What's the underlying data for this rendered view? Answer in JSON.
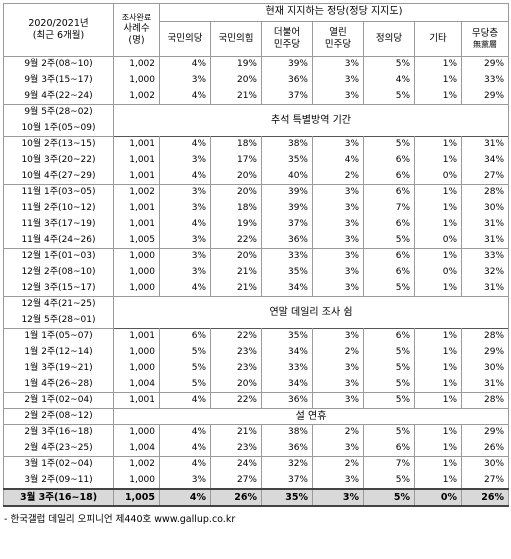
{
  "header": {
    "col_period_line1": "2020/2021년",
    "col_period_line2": "(최근 6개월)",
    "col_sample_top": "조사완료",
    "col_sample_line1": "사례수",
    "col_sample_line2": "(명)",
    "group_title": "현재 지지하는 정당(정당 지지도)",
    "parties": [
      {
        "line1": "국민의당",
        "line2": ""
      },
      {
        "line1": "국민의힘",
        "line2": ""
      },
      {
        "line1": "더불어",
        "line2": "민주당"
      },
      {
        "line1": "열린",
        "line2": "민주당"
      },
      {
        "line1": "정의당",
        "line2": ""
      },
      {
        "line1": "기타",
        "line2": ""
      },
      {
        "line1": "무당층",
        "line2": "無黨層"
      }
    ]
  },
  "rows": [
    {
      "period": "9월 2주(08~10)",
      "n": "1,002",
      "v": [
        "4%",
        "19%",
        "39%",
        "3%",
        "5%",
        "1%",
        "29%"
      ]
    },
    {
      "period": "9월 3주(15~17)",
      "n": "1,000",
      "v": [
        "3%",
        "20%",
        "36%",
        "3%",
        "4%",
        "1%",
        "33%"
      ]
    },
    {
      "period": "9월 4주(22~24)",
      "n": "1,002",
      "v": [
        "4%",
        "21%",
        "37%",
        "3%",
        "5%",
        "1%",
        "29%"
      ]
    },
    {
      "period": "9월 5주(28~02)",
      "note": "추석 특별방역 기간"
    },
    {
      "period": "10월 1주(05~09)",
      "note": ""
    },
    {
      "period": "10월 2주(13~15)",
      "n": "1,001",
      "v": [
        "4%",
        "18%",
        "38%",
        "3%",
        "5%",
        "1%",
        "31%"
      ]
    },
    {
      "period": "10월 3주(20~22)",
      "n": "1,001",
      "v": [
        "3%",
        "17%",
        "35%",
        "4%",
        "6%",
        "1%",
        "34%"
      ]
    },
    {
      "period": "10월 4주(27~29)",
      "n": "1,001",
      "v": [
        "4%",
        "20%",
        "40%",
        "2%",
        "6%",
        "0%",
        "27%"
      ]
    },
    {
      "period": "11월 1주(03~05)",
      "n": "1,002",
      "v": [
        "3%",
        "20%",
        "39%",
        "3%",
        "6%",
        "1%",
        "28%"
      ]
    },
    {
      "period": "11월 2주(10~12)",
      "n": "1,001",
      "v": [
        "3%",
        "18%",
        "39%",
        "3%",
        "7%",
        "1%",
        "30%"
      ]
    },
    {
      "period": "11월 3주(17~19)",
      "n": "1,001",
      "v": [
        "4%",
        "19%",
        "37%",
        "3%",
        "6%",
        "1%",
        "31%"
      ]
    },
    {
      "period": "11월 4주(24~26)",
      "n": "1,005",
      "v": [
        "3%",
        "22%",
        "36%",
        "3%",
        "5%",
        "0%",
        "31%"
      ]
    },
    {
      "period": "12월 1주(01~03)",
      "n": "1,000",
      "v": [
        "3%",
        "20%",
        "33%",
        "3%",
        "6%",
        "1%",
        "33%"
      ]
    },
    {
      "period": "12월 2주(08~10)",
      "n": "1,000",
      "v": [
        "3%",
        "21%",
        "35%",
        "3%",
        "6%",
        "0%",
        "32%"
      ]
    },
    {
      "period": "12월 3주(15~17)",
      "n": "1,000",
      "v": [
        "4%",
        "21%",
        "34%",
        "3%",
        "5%",
        "1%",
        "31%"
      ]
    },
    {
      "period": "12월 4주(21~25)",
      "note": "연말 데일리 조사 쉼"
    },
    {
      "period": "12월 5주(28~01)",
      "note": ""
    },
    {
      "period": "1월 1주(05~07)",
      "n": "1,001",
      "v": [
        "6%",
        "22%",
        "35%",
        "3%",
        "6%",
        "1%",
        "28%"
      ]
    },
    {
      "period": "1월 2주(12~14)",
      "n": "1,000",
      "v": [
        "5%",
        "23%",
        "34%",
        "2%",
        "5%",
        "1%",
        "29%"
      ]
    },
    {
      "period": "1월 3주(19~21)",
      "n": "1,000",
      "v": [
        "5%",
        "23%",
        "33%",
        "3%",
        "5%",
        "1%",
        "30%"
      ]
    },
    {
      "period": "1월 4주(26~28)",
      "n": "1,004",
      "v": [
        "5%",
        "20%",
        "34%",
        "3%",
        "5%",
        "1%",
        "31%"
      ]
    },
    {
      "period": "2월 1주(02~04)",
      "n": "1,001",
      "v": [
        "4%",
        "22%",
        "36%",
        "3%",
        "5%",
        "1%",
        "28%"
      ]
    },
    {
      "period": "2월 2주(08~12)",
      "note": "설 연휴"
    },
    {
      "period": "2월 3주(16~18)",
      "n": "1,000",
      "v": [
        "4%",
        "21%",
        "38%",
        "2%",
        "5%",
        "1%",
        "29%"
      ]
    },
    {
      "period": "2월 4주(23~25)",
      "n": "1,004",
      "v": [
        "4%",
        "23%",
        "36%",
        "3%",
        "6%",
        "1%",
        "26%"
      ]
    },
    {
      "period": "3월 1주(02~04)",
      "n": "1,002",
      "v": [
        "4%",
        "24%",
        "32%",
        "2%",
        "7%",
        "1%",
        "30%"
      ]
    },
    {
      "period": "3월 2주(09~11)",
      "n": "1,000",
      "v": [
        "3%",
        "27%",
        "37%",
        "3%",
        "5%",
        "1%",
        "27%"
      ]
    },
    {
      "period": "3월 3주(16~18)",
      "n": "1,005",
      "v": [
        "4%",
        "26%",
        "35%",
        "3%",
        "5%",
        "0%",
        "26%"
      ],
      "highlight": true
    }
  ],
  "group_starts": [
    0,
    3,
    5,
    8,
    12,
    15,
    17,
    21,
    22,
    23,
    25,
    27
  ],
  "note_blocks": [
    [
      3,
      4
    ],
    [
      15,
      16
    ]
  ],
  "footer": "- 한국갤럽 데일리 오피니언 제440호 www.gallup.co.kr"
}
